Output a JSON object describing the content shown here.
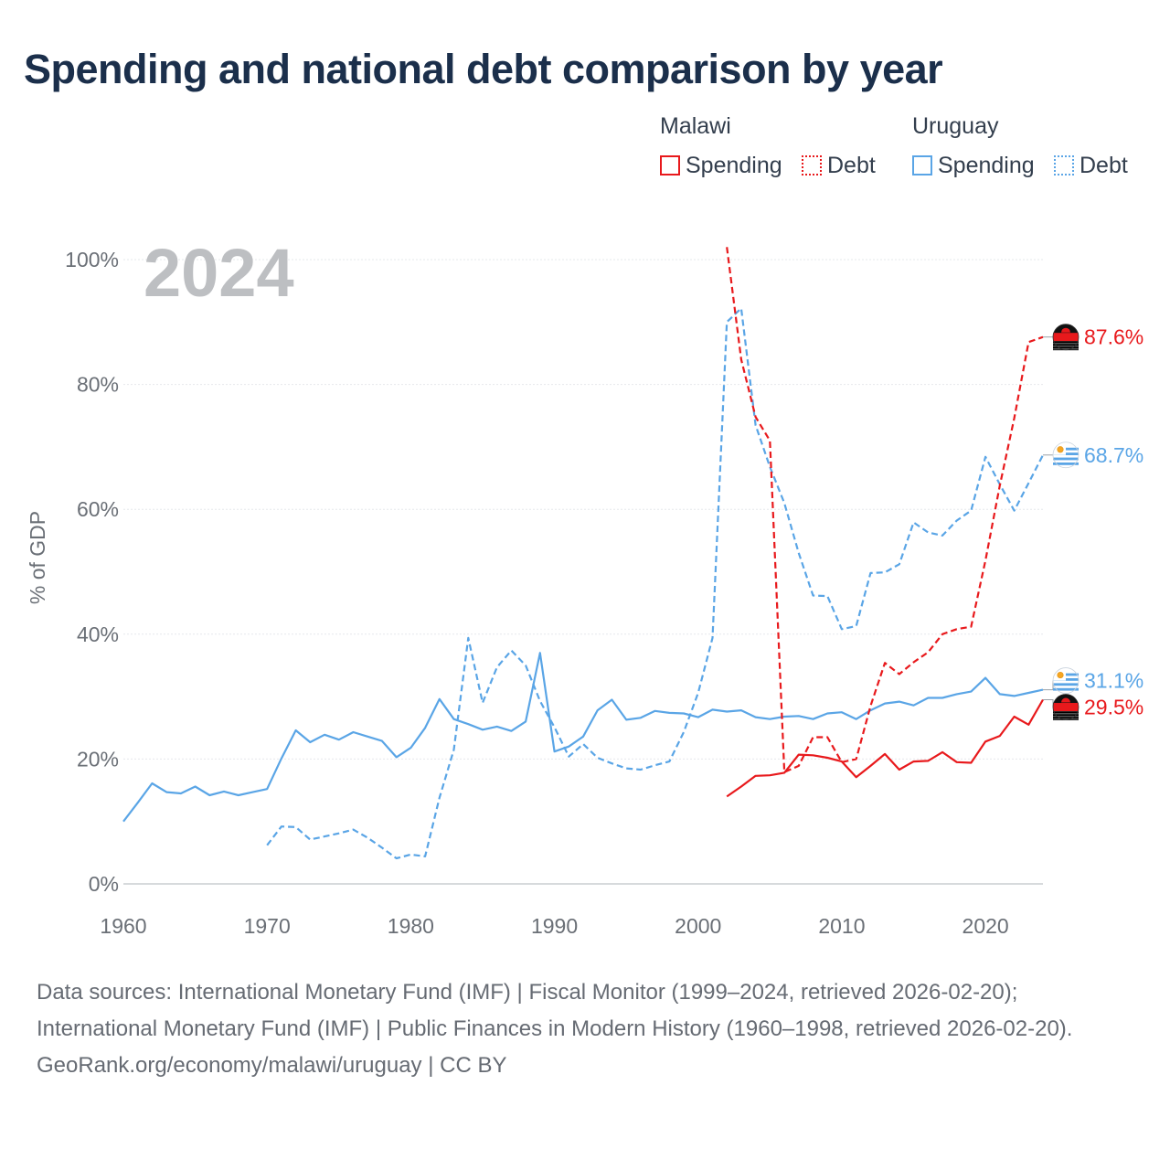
{
  "title": "Spending and national debt comparison by year",
  "legend": {
    "groups": [
      {
        "name": "Malawi",
        "color": "#e8191c",
        "items": [
          {
            "label": "Spending",
            "style": "solid"
          },
          {
            "label": "Debt",
            "style": "dotted"
          }
        ]
      },
      {
        "name": "Uruguay",
        "color": "#5aa5e6",
        "items": [
          {
            "label": "Spending",
            "style": "solid"
          },
          {
            "label": "Debt",
            "style": "dotted"
          }
        ]
      }
    ]
  },
  "footer": {
    "sources": "Data sources: International Monetary Fund (IMF) | Fiscal Monitor (1999–2024, retrieved 2026-02-20); International Monetary Fund (IMF) | Public Finances in Modern History (1960–1998, retrieved 2026-02-20).",
    "credit": "GeoRank.org/economy/malawi/uruguay | CC BY"
  },
  "chart_data": {
    "type": "line",
    "title": "Spending and national debt comparison by year",
    "current_year_label": "2024",
    "xlabel": "",
    "ylabel": "% of GDP",
    "xlim": [
      1960,
      2024
    ],
    "ylim": [
      0,
      100
    ],
    "x_ticks": [
      1960,
      1970,
      1980,
      1990,
      2000,
      2010,
      2020
    ],
    "y_ticks": [
      0,
      20,
      40,
      60,
      80,
      100
    ],
    "y_tick_labels": [
      "0%",
      "20%",
      "40%",
      "60%",
      "80%",
      "100%"
    ],
    "grid": true,
    "series": [
      {
        "name": "Uruguay Spending",
        "country": "Uruguay",
        "kind": "spending",
        "color": "#5aa5e6",
        "dash": "solid",
        "end_label": "31.1%",
        "points": [
          [
            1960,
            10
          ],
          [
            1961,
            13
          ],
          [
            1962,
            16.1
          ],
          [
            1963,
            14.7
          ],
          [
            1964,
            14.5
          ],
          [
            1965,
            15.6
          ],
          [
            1966,
            14.2
          ],
          [
            1967,
            14.8
          ],
          [
            1968,
            14.2
          ],
          [
            1969,
            14.7
          ],
          [
            1970,
            15.2
          ],
          [
            1971,
            20.1
          ],
          [
            1972,
            24.6
          ],
          [
            1973,
            22.7
          ],
          [
            1974,
            23.9
          ],
          [
            1975,
            23.1
          ],
          [
            1976,
            24.3
          ],
          [
            1977,
            23.6
          ],
          [
            1978,
            22.9
          ],
          [
            1979,
            20.3
          ],
          [
            1980,
            21.8
          ],
          [
            1981,
            25
          ],
          [
            1982,
            29.6
          ],
          [
            1983,
            26.4
          ],
          [
            1984,
            25.6
          ],
          [
            1985,
            24.7
          ],
          [
            1986,
            25.2
          ],
          [
            1987,
            24.5
          ],
          [
            1988,
            26
          ],
          [
            1989,
            37
          ],
          [
            1990,
            21.2
          ],
          [
            1991,
            22
          ],
          [
            1992,
            23.6
          ],
          [
            1993,
            27.8
          ],
          [
            1994,
            29.5
          ],
          [
            1995,
            26.3
          ],
          [
            1996,
            26.6
          ],
          [
            1997,
            27.7
          ],
          [
            1998,
            27.4
          ],
          [
            1999,
            27.3
          ],
          [
            2000,
            26.7
          ],
          [
            2001,
            27.9
          ],
          [
            2002,
            27.6
          ],
          [
            2003,
            27.8
          ],
          [
            2004,
            26.7
          ],
          [
            2005,
            26.4
          ],
          [
            2006,
            26.8
          ],
          [
            2007,
            26.9
          ],
          [
            2008,
            26.4
          ],
          [
            2009,
            27.3
          ],
          [
            2010,
            27.5
          ],
          [
            2011,
            26.4
          ],
          [
            2012,
            27.8
          ],
          [
            2013,
            28.9
          ],
          [
            2014,
            29.2
          ],
          [
            2015,
            28.6
          ],
          [
            2016,
            29.8
          ],
          [
            2017,
            29.8
          ],
          [
            2018,
            30.4
          ],
          [
            2019,
            30.8
          ],
          [
            2020,
            33
          ],
          [
            2021,
            30.4
          ],
          [
            2022,
            30.1
          ],
          [
            2023,
            30.6
          ],
          [
            2024,
            31.1
          ]
        ]
      },
      {
        "name": "Uruguay Debt",
        "country": "Uruguay",
        "kind": "debt",
        "color": "#5aa5e6",
        "dash": "dashed",
        "end_label": "68.7%",
        "points": [
          [
            1970,
            6.2
          ],
          [
            1971,
            9.2
          ],
          [
            1972,
            9.1
          ],
          [
            1973,
            7.1
          ],
          [
            1974,
            7.6
          ],
          [
            1975,
            8.1
          ],
          [
            1976,
            8.7
          ],
          [
            1977,
            7.4
          ],
          [
            1978,
            5.8
          ],
          [
            1979,
            4.1
          ],
          [
            1980,
            4.7
          ],
          [
            1981,
            4.4
          ],
          [
            1982,
            13.8
          ],
          [
            1983,
            21.5
          ],
          [
            1984,
            39.4
          ],
          [
            1985,
            29
          ],
          [
            1986,
            34.7
          ],
          [
            1987,
            37.4
          ],
          [
            1988,
            35
          ],
          [
            1989,
            29.3
          ],
          [
            1990,
            25.1
          ],
          [
            1991,
            20.4
          ],
          [
            1992,
            22.4
          ],
          [
            1993,
            20.2
          ],
          [
            1994,
            19.3
          ],
          [
            1995,
            18.5
          ],
          [
            1996,
            18.3
          ],
          [
            1997,
            19
          ],
          [
            1998,
            19.6
          ],
          [
            1999,
            24.3
          ],
          [
            2000,
            30.6
          ],
          [
            2001,
            39.4
          ],
          [
            2002,
            90
          ],
          [
            2003,
            92.2
          ],
          [
            2004,
            73.5
          ],
          [
            2005,
            66.8
          ],
          [
            2006,
            61
          ],
          [
            2007,
            53
          ],
          [
            2008,
            46.2
          ],
          [
            2009,
            46.1
          ],
          [
            2010,
            40.8
          ],
          [
            2011,
            41.3
          ],
          [
            2012,
            49.8
          ],
          [
            2013,
            49.9
          ],
          [
            2014,
            51.2
          ],
          [
            2015,
            57.9
          ],
          [
            2016,
            56.3
          ],
          [
            2017,
            55.8
          ],
          [
            2018,
            58.2
          ],
          [
            2019,
            59.8
          ],
          [
            2020,
            68.4
          ],
          [
            2021,
            64
          ],
          [
            2022,
            59.8
          ],
          [
            2023,
            64.2
          ],
          [
            2024,
            68.7
          ]
        ]
      },
      {
        "name": "Malawi Spending",
        "country": "Malawi",
        "kind": "spending",
        "color": "#e8191c",
        "dash": "solid",
        "end_label": "29.5%",
        "points": [
          [
            2002,
            14
          ],
          [
            2003,
            15.6
          ],
          [
            2004,
            17.3
          ],
          [
            2005,
            17.4
          ],
          [
            2006,
            17.8
          ],
          [
            2007,
            20.7
          ],
          [
            2008,
            20.6
          ],
          [
            2009,
            20.2
          ],
          [
            2010,
            19.6
          ],
          [
            2011,
            17.1
          ],
          [
            2012,
            18.9
          ],
          [
            2013,
            20.8
          ],
          [
            2014,
            18.3
          ],
          [
            2015,
            19.6
          ],
          [
            2016,
            19.7
          ],
          [
            2017,
            21.1
          ],
          [
            2018,
            19.5
          ],
          [
            2019,
            19.4
          ],
          [
            2020,
            22.8
          ],
          [
            2021,
            23.7
          ],
          [
            2022,
            26.8
          ],
          [
            2023,
            25.5
          ],
          [
            2024,
            29.5
          ]
        ]
      },
      {
        "name": "Malawi Debt",
        "country": "Malawi",
        "kind": "debt",
        "color": "#e8191c",
        "dash": "dashed",
        "end_label": "87.6%",
        "points": [
          [
            2002,
            102
          ],
          [
            2003,
            84
          ],
          [
            2004,
            74.8
          ],
          [
            2005,
            71
          ],
          [
            2006,
            17.9
          ],
          [
            2007,
            18.9
          ],
          [
            2008,
            23.5
          ],
          [
            2009,
            23.5
          ],
          [
            2010,
            19.5
          ],
          [
            2011,
            20
          ],
          [
            2012,
            28.5
          ],
          [
            2013,
            35.4
          ],
          [
            2014,
            33.6
          ],
          [
            2015,
            35.5
          ],
          [
            2016,
            37.1
          ],
          [
            2017,
            40
          ],
          [
            2018,
            40.8
          ],
          [
            2019,
            41.2
          ],
          [
            2020,
            51.8
          ],
          [
            2021,
            63.8
          ],
          [
            2022,
            74.6
          ],
          [
            2023,
            86.8
          ],
          [
            2024,
            87.6
          ]
        ]
      }
    ]
  }
}
